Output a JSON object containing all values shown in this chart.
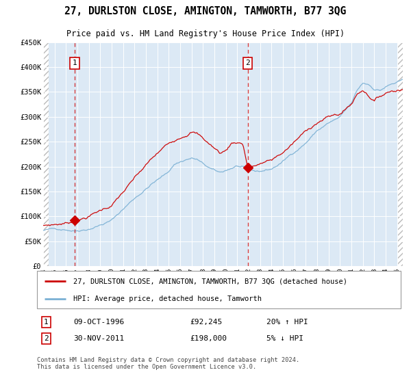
{
  "title": "27, DURLSTON CLOSE, AMINGTON, TAMWORTH, B77 3QG",
  "subtitle": "Price paid vs. HM Land Registry's House Price Index (HPI)",
  "legend_line1": "27, DURLSTON CLOSE, AMINGTON, TAMWORTH, B77 3QG (detached house)",
  "legend_line2": "HPI: Average price, detached house, Tamworth",
  "annotation1_date": "09-OCT-1996",
  "annotation1_price": "£92,245",
  "annotation1_hpi": "20% ↑ HPI",
  "annotation2_date": "30-NOV-2011",
  "annotation2_price": "£198,000",
  "annotation2_hpi": "5% ↓ HPI",
  "footnote": "Contains HM Land Registry data © Crown copyright and database right 2024.\nThis data is licensed under the Open Government Licence v3.0.",
  "plot_bg_color": "#dce9f5",
  "red_line_color": "#cc0000",
  "blue_line_color": "#7ab0d4",
  "sale1_x": 1996.77,
  "sale1_y": 92245,
  "sale2_x": 2011.92,
  "sale2_y": 198000,
  "ylim": [
    0,
    450000
  ],
  "xlim_start": 1994.0,
  "xlim_end": 2025.5
}
